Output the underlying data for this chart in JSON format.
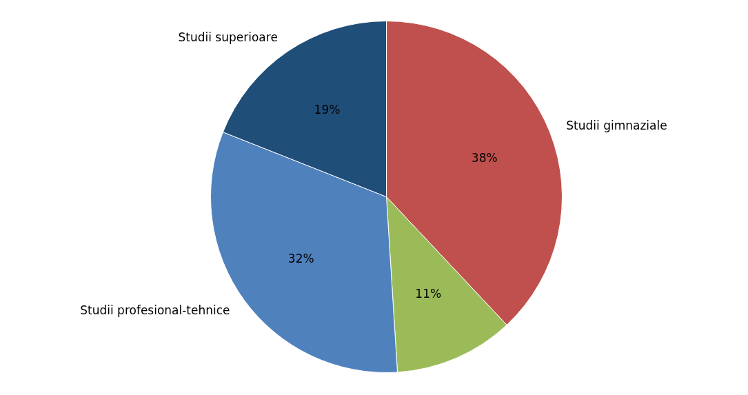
{
  "chart_data": {
    "type": "pie",
    "categories": [
      "Studii gimnaziale",
      null,
      "Studii profesional-tehnice",
      "Studii superioare"
    ],
    "values": [
      38,
      11,
      32,
      19
    ],
    "colors": [
      "#c0504d",
      "#9bbb59",
      "#4f81bd",
      "#1f4e79"
    ],
    "value_labels": [
      "38%",
      "11%",
      "32%",
      "19%"
    ],
    "legend": false
  }
}
